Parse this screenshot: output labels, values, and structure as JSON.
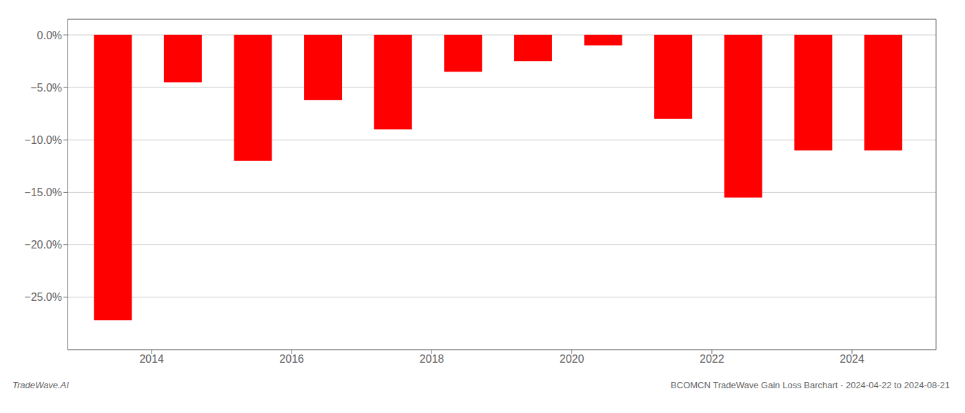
{
  "chart_data": {
    "type": "bar",
    "x": [
      2013.45,
      2014.45,
      2015.45,
      2016.45,
      2017.45,
      2018.45,
      2019.45,
      2020.45,
      2021.45,
      2022.45,
      2023.45,
      2024.45
    ],
    "values": [
      -27.2,
      -4.5,
      -12.0,
      -6.2,
      -9.0,
      -3.5,
      -2.5,
      -1.0,
      -8.0,
      -15.5,
      -11.0,
      -11.0
    ],
    "color": "#ff0000",
    "xlim": [
      2012.8,
      2025.2
    ],
    "xticks": [
      2014,
      2016,
      2018,
      2020,
      2022,
      2024
    ],
    "ylim": [
      -30,
      1.5
    ],
    "yticks": [
      {
        "value": 0.0,
        "label": "0.0%"
      },
      {
        "value": -5.0,
        "label": "−5.0%"
      },
      {
        "value": -10.0,
        "label": "−10.0%"
      },
      {
        "value": -15.0,
        "label": "−15.0%"
      },
      {
        "value": -20.0,
        "label": "−20.0%"
      },
      {
        "value": -25.0,
        "label": "−25.0%"
      }
    ],
    "grid": true,
    "annotations": [
      "TradeWave.AI",
      "BCOMCN TradeWave Gain Loss Barchart - 2024-04-22 to 2024-08-21"
    ]
  }
}
